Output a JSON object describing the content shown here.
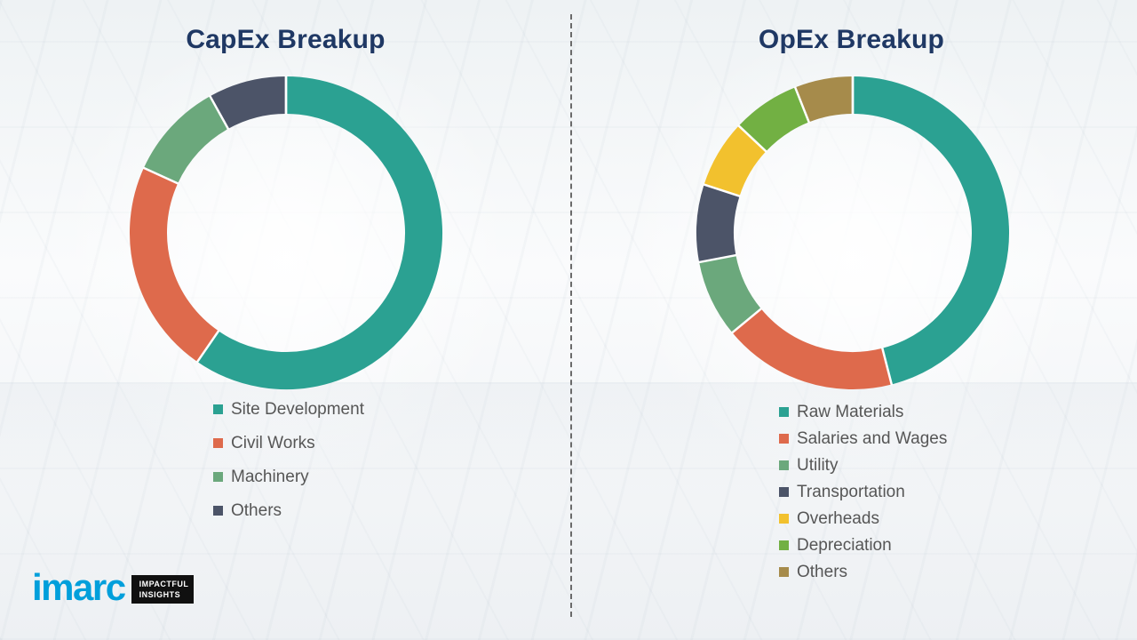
{
  "chart_data": [
    {
      "type": "pie",
      "variant": "donut",
      "title": "CapEx Breakup",
      "units": "percent",
      "legend_position": "below-left",
      "segments": [
        {
          "label": "Site Development",
          "value": 59,
          "color": "#2BA192"
        },
        {
          "label": "Civil Works",
          "value": 22,
          "color": "#DE6A4C"
        },
        {
          "label": "Machinery",
          "value": 10,
          "color": "#6BA87C"
        },
        {
          "label": "Others",
          "value": 8,
          "color": "#4C5468"
        }
      ]
    },
    {
      "type": "pie",
      "variant": "donut",
      "title": "OpEx Breakup",
      "units": "percent",
      "legend_position": "below-left",
      "segments": [
        {
          "label": "Raw Materials",
          "value": 46,
          "color": "#2BA192"
        },
        {
          "label": "Salaries and Wages",
          "value": 18,
          "color": "#DE6A4C"
        },
        {
          "label": "Utility",
          "value": 8,
          "color": "#6BA87C"
        },
        {
          "label": "Transportation",
          "value": 8,
          "color": "#4C5468"
        },
        {
          "label": "Overheads",
          "value": 7,
          "color": "#F2C12E"
        },
        {
          "label": "Depreciation",
          "value": 7,
          "color": "#72B043"
        },
        {
          "label": "Others",
          "value": 6,
          "color": "#A68B4B"
        }
      ]
    }
  ],
  "logo": {
    "brand": "imarc",
    "tagline_line1": "IMPACTFUL",
    "tagline_line2": "INSIGHTS"
  }
}
